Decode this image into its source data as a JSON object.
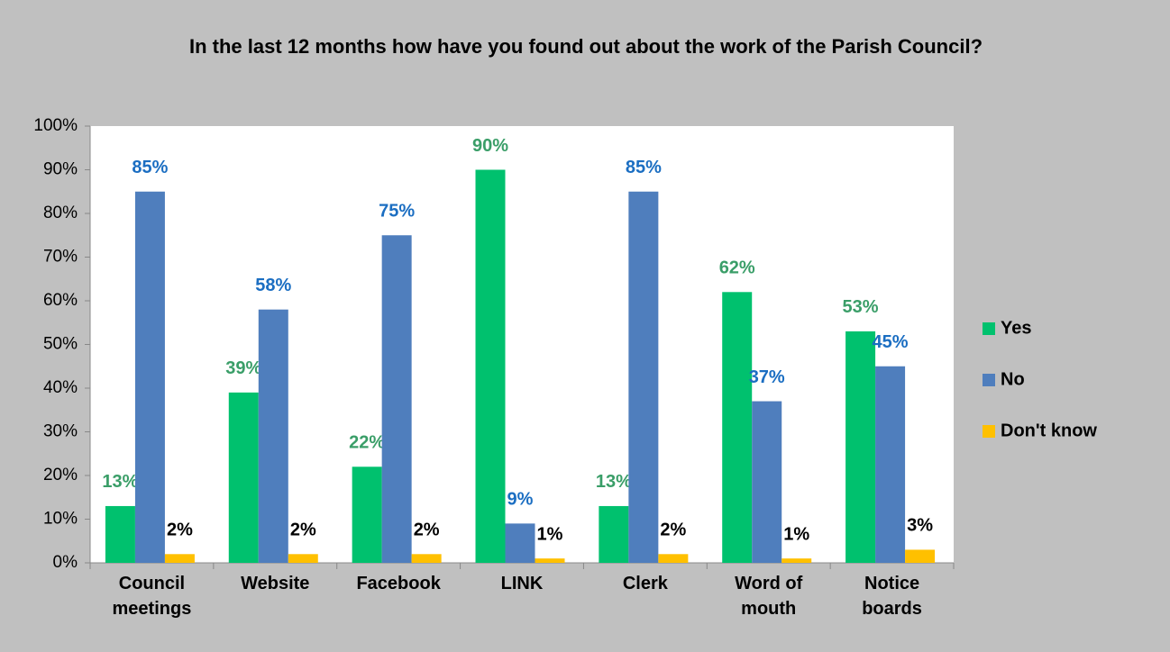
{
  "chart_data": {
    "type": "bar",
    "title": "In the last 12 months how have you found out about the work of the Parish Council?",
    "categories": [
      "Council meetings",
      "Website",
      "Facebook",
      "LINK",
      "Clerk",
      "Word of mouth",
      "Notice boards"
    ],
    "series": [
      {
        "name": "Yes",
        "color": "#00c16e",
        "label_color": "#3a9e68",
        "values": [
          13,
          39,
          22,
          90,
          13,
          62,
          53
        ],
        "value_labels": [
          "13%",
          "39%",
          "22%",
          "90%",
          "13%",
          "62%",
          "53%"
        ]
      },
      {
        "name": "No",
        "color": "#4f7ebd",
        "label_color": "#1b6ec2",
        "values": [
          85,
          58,
          75,
          9,
          85,
          37,
          45
        ],
        "value_labels": [
          "85%",
          "58%",
          "75%",
          "9%",
          "85%",
          "37%",
          "45%"
        ]
      },
      {
        "name": "Don't know",
        "color": "#ffc000",
        "label_color": "#000000",
        "values": [
          2,
          2,
          2,
          1,
          2,
          1,
          3
        ],
        "value_labels": [
          "2%",
          "2%",
          "2%",
          "1%",
          "2%",
          "1%",
          "3%"
        ]
      }
    ],
    "ylim": [
      0,
      100
    ],
    "yticks": [
      {
        "value": 0,
        "label": "0%"
      },
      {
        "value": 10,
        "label": "10%"
      },
      {
        "value": 20,
        "label": "20%"
      },
      {
        "value": 30,
        "label": "30%"
      },
      {
        "value": 40,
        "label": "40%"
      },
      {
        "value": 50,
        "label": "50%"
      },
      {
        "value": 60,
        "label": "60%"
      },
      {
        "value": 70,
        "label": "70%"
      },
      {
        "value": 80,
        "label": "80%"
      },
      {
        "value": 90,
        "label": "90%"
      },
      {
        "value": 100,
        "label": "100%"
      }
    ],
    "legend": "right",
    "grid": false
  }
}
